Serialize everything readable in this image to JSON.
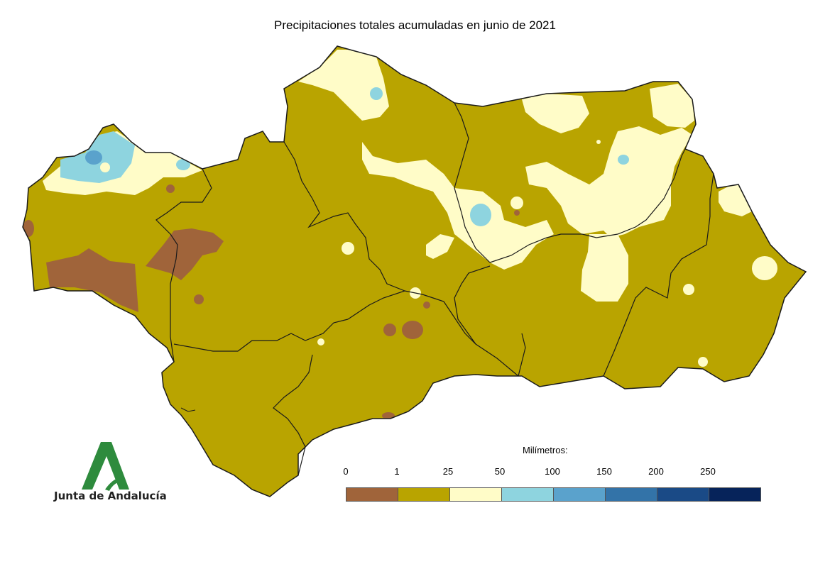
{
  "title": "Precipitaciones totales acumuladas en junio de 2021",
  "logo": {
    "text": "Junta de Andalucía",
    "color": "#2e8b3d"
  },
  "legend": {
    "title": "Milímetros:",
    "labels": [
      "0",
      "1",
      "25",
      "50",
      "100",
      "150",
      "200",
      "250"
    ],
    "colors": [
      "#a0643a",
      "#b9a400",
      "#fffcc8",
      "#8ed4df",
      "#5aa2cc",
      "#3373a8",
      "#1a4a86",
      "#06235a"
    ]
  },
  "map_colors": {
    "dry": "#a0643a",
    "base": "#b9a400",
    "light": "#fffcc8",
    "cyan": "#8ed4df",
    "blue": "#5aa2cc",
    "border": "#1a1a1a"
  }
}
